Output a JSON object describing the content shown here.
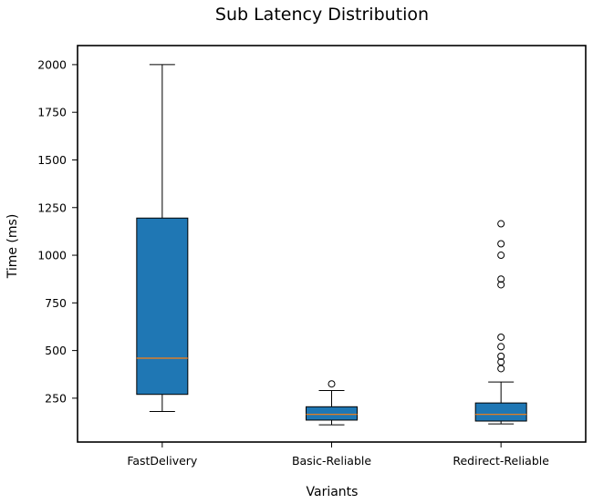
{
  "chart_data": {
    "type": "boxplot",
    "title": "Sub Latency Distribution",
    "xlabel": "Variants",
    "ylabel": "Time (ms)",
    "ylim": [
      20,
      2100
    ],
    "yticks": [
      250,
      500,
      750,
      1000,
      1250,
      1500,
      1750,
      2000
    ],
    "grid": false,
    "colors": {
      "box": "#1f77b4",
      "median": "#ff7f0e",
      "edge": "#000000"
    },
    "categories": [
      "FastDelivery",
      "Basic-Reliable",
      "Redirect-Reliable"
    ],
    "boxes": [
      {
        "whisker_low": 180,
        "q1": 270,
        "median": 460,
        "q3": 1195,
        "whisker_high": 2000,
        "outliers": []
      },
      {
        "whisker_low": 110,
        "q1": 135,
        "median": 165,
        "q3": 205,
        "whisker_high": 290,
        "outliers": [
          325
        ]
      },
      {
        "whisker_low": 115,
        "q1": 130,
        "median": 165,
        "q3": 225,
        "whisker_high": 335,
        "outliers": [
          405,
          440,
          470,
          520,
          570,
          845,
          875,
          1000,
          1060,
          1165
        ]
      }
    ]
  }
}
